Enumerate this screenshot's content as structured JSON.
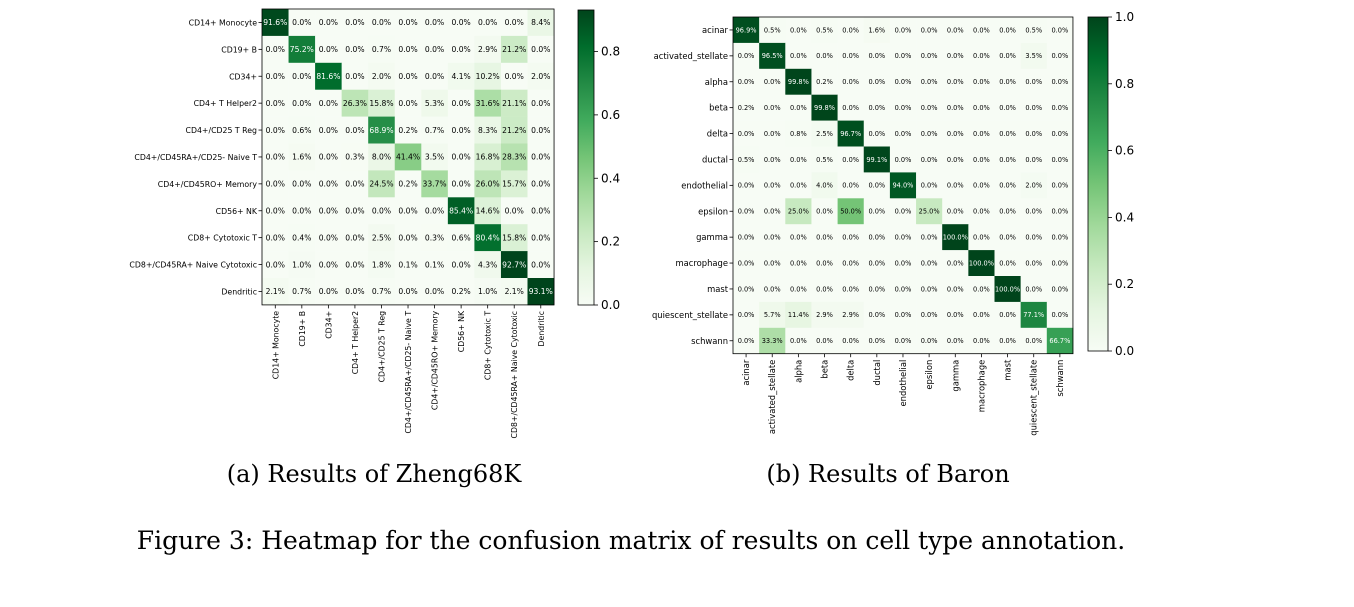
{
  "figure_caption": "Figure 3: Heatmap for the confusion matrix of results on cell type annotation.",
  "chart_data": [
    {
      "type": "heatmap",
      "caption": "(a) Results of Zheng68K",
      "colormap": "Greens",
      "colorbar": {
        "min": 0.0,
        "max": 0.931,
        "ticks": [
          "0.0",
          "0.2",
          "0.4",
          "0.6",
          "0.8"
        ]
      },
      "row_labels": [
        "CD14+ Monocyte",
        "CD19+ B",
        "CD34+",
        "CD4+ T Helper2",
        "CD4+/CD25 T Reg",
        "CD4+/CD45RA+/CD25- Naive T",
        "CD4+/CD45RO+ Memory",
        "CD56+ NK",
        "CD8+ Cytotoxic T",
        "CD8+/CD45RA+ Naive Cytotoxic",
        "Dendritic"
      ],
      "col_labels": [
        "CD14+ Monocyte",
        "CD19+ B",
        "CD34+",
        "CD4+ T Helper2",
        "CD4+/CD25 T Reg",
        "CD4+/CD45RA+/CD25- Naive T",
        "CD4+/CD45RO+ Memory",
        "CD56+ NK",
        "CD8+ Cytotoxic T",
        "CD8+/CD45RA+ Naive Cytotoxic",
        "Dendritic"
      ],
      "values": [
        [
          91.6,
          0.0,
          0.0,
          0.0,
          0.0,
          0.0,
          0.0,
          0.0,
          0.0,
          0.0,
          8.4
        ],
        [
          0.0,
          75.2,
          0.0,
          0.0,
          0.7,
          0.0,
          0.0,
          0.0,
          2.9,
          21.2,
          0.0
        ],
        [
          0.0,
          0.0,
          81.6,
          0.0,
          2.0,
          0.0,
          0.0,
          4.1,
          10.2,
          0.0,
          2.0
        ],
        [
          0.0,
          0.0,
          0.0,
          26.3,
          15.8,
          0.0,
          5.3,
          0.0,
          31.6,
          21.1,
          0.0
        ],
        [
          0.0,
          0.6,
          0.0,
          0.0,
          68.9,
          0.2,
          0.7,
          0.0,
          8.3,
          21.2,
          0.0
        ],
        [
          0.0,
          1.6,
          0.0,
          0.3,
          8.0,
          41.4,
          3.5,
          0.0,
          16.8,
          28.3,
          0.0
        ],
        [
          0.0,
          0.0,
          0.0,
          0.0,
          24.5,
          0.2,
          33.7,
          0.0,
          26.0,
          15.7,
          0.0
        ],
        [
          0.0,
          0.0,
          0.0,
          0.0,
          0.0,
          0.0,
          0.0,
          85.4,
          14.6,
          0.0,
          0.0
        ],
        [
          0.0,
          0.4,
          0.0,
          0.0,
          2.5,
          0.0,
          0.3,
          0.6,
          80.4,
          15.8,
          0.0
        ],
        [
          0.0,
          1.0,
          0.0,
          0.0,
          1.8,
          0.1,
          0.1,
          0.0,
          4.3,
          92.7,
          0.0
        ],
        [
          2.1,
          0.7,
          0.0,
          0.0,
          0.7,
          0.0,
          0.0,
          0.2,
          1.0,
          2.1,
          93.1
        ]
      ]
    },
    {
      "type": "heatmap",
      "caption": "(b) Results of Baron",
      "colormap": "Greens",
      "colorbar": {
        "min": 0.0,
        "max": 1.0,
        "ticks": [
          "0.0",
          "0.2",
          "0.4",
          "0.6",
          "0.8",
          "1.0"
        ]
      },
      "row_labels": [
        "acinar",
        "activated_stellate",
        "alpha",
        "beta",
        "delta",
        "ductal",
        "endothelial",
        "epsilon",
        "gamma",
        "macrophage",
        "mast",
        "quiescent_stellate",
        "schwann"
      ],
      "col_labels": [
        "acinar",
        "activated_stellate",
        "alpha",
        "beta",
        "delta",
        "ductal",
        "endothelial",
        "epsilon",
        "gamma",
        "macrophage",
        "mast",
        "quiescent_stellate",
        "schwann"
      ],
      "values": [
        [
          96.9,
          0.5,
          0.0,
          0.5,
          0.0,
          1.6,
          0.0,
          0.0,
          0.0,
          0.0,
          0.0,
          0.5,
          0.0
        ],
        [
          0.0,
          96.5,
          0.0,
          0.0,
          0.0,
          0.0,
          0.0,
          0.0,
          0.0,
          0.0,
          0.0,
          3.5,
          0.0
        ],
        [
          0.0,
          0.0,
          99.8,
          0.2,
          0.0,
          0.0,
          0.0,
          0.0,
          0.0,
          0.0,
          0.0,
          0.0,
          0.0
        ],
        [
          0.2,
          0.0,
          0.0,
          99.8,
          0.0,
          0.0,
          0.0,
          0.0,
          0.0,
          0.0,
          0.0,
          0.0,
          0.0
        ],
        [
          0.0,
          0.0,
          0.8,
          2.5,
          96.7,
          0.0,
          0.0,
          0.0,
          0.0,
          0.0,
          0.0,
          0.0,
          0.0
        ],
        [
          0.5,
          0.0,
          0.0,
          0.5,
          0.0,
          99.1,
          0.0,
          0.0,
          0.0,
          0.0,
          0.0,
          0.0,
          0.0
        ],
        [
          0.0,
          0.0,
          0.0,
          4.0,
          0.0,
          0.0,
          94.0,
          0.0,
          0.0,
          0.0,
          0.0,
          2.0,
          0.0
        ],
        [
          0.0,
          0.0,
          25.0,
          0.0,
          50.0,
          0.0,
          0.0,
          25.0,
          0.0,
          0.0,
          0.0,
          0.0,
          0.0
        ],
        [
          0.0,
          0.0,
          0.0,
          0.0,
          0.0,
          0.0,
          0.0,
          0.0,
          100.0,
          0.0,
          0.0,
          0.0,
          0.0
        ],
        [
          0.0,
          0.0,
          0.0,
          0.0,
          0.0,
          0.0,
          0.0,
          0.0,
          0.0,
          100.0,
          0.0,
          0.0,
          0.0
        ],
        [
          0.0,
          0.0,
          0.0,
          0.0,
          0.0,
          0.0,
          0.0,
          0.0,
          0.0,
          0.0,
          100.0,
          0.0,
          0.0
        ],
        [
          0.0,
          5.7,
          11.4,
          2.9,
          2.9,
          0.0,
          0.0,
          0.0,
          0.0,
          0.0,
          0.0,
          77.1,
          0.0
        ],
        [
          0.0,
          33.3,
          0.0,
          0.0,
          0.0,
          0.0,
          0.0,
          0.0,
          0.0,
          0.0,
          0.0,
          0.0,
          66.7
        ]
      ]
    }
  ]
}
